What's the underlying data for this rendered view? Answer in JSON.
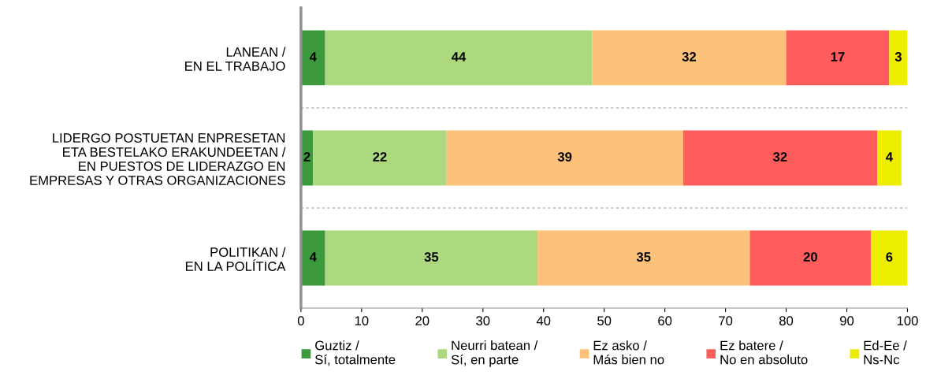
{
  "chart_data": {
    "type": "bar",
    "orientation": "horizontal",
    "stacked": true,
    "categories": [
      "LANEAN /\nEN EL TRABAJO",
      "LIDERGO POSTUETAN ENPRESETAN\nETA BESTELAKO ERAKUNDEETAN /\nEN PUESTOS DE LIDERAZGO EN\nEMPRESAS Y OTRAS ORGANIZACIONES",
      "POLITIKAN /\nEN LA POLÍTICA"
    ],
    "series": [
      {
        "name": "Guztiz /\nSí, totalmente",
        "color": "#3c9a3c",
        "values": [
          4,
          2,
          4
        ]
      },
      {
        "name": "Neurri batean /\nSí, en parte",
        "color": "#acd97e",
        "values": [
          44,
          22,
          35
        ]
      },
      {
        "name": "Ez asko /\nMás bien no",
        "color": "#fdc27a",
        "values": [
          32,
          39,
          35
        ]
      },
      {
        "name": "Ez batere /\nNo en absoluto",
        "color": "#ff5c5c",
        "values": [
          17,
          32,
          20
        ]
      },
      {
        "name": "Ed-Ee /\nNs-Nc",
        "color": "#eded00",
        "values": [
          3,
          4,
          6
        ]
      }
    ],
    "xlim": [
      0,
      100
    ],
    "xticks": [
      0,
      10,
      20,
      30,
      40,
      50,
      60,
      70,
      80,
      90,
      100
    ],
    "data_labels": true,
    "grid": "y",
    "legend": "bottom"
  }
}
